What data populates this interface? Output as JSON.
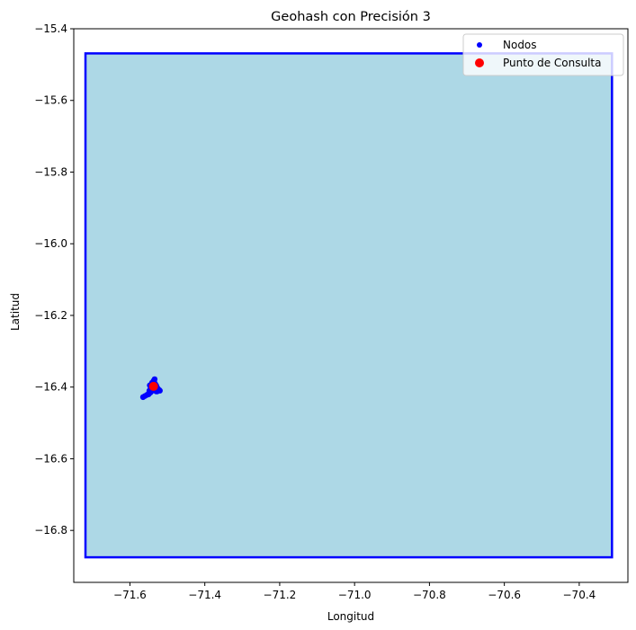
{
  "chart_data": {
    "type": "scatter",
    "title": "Geohash con Precisión 3",
    "xlabel": "Longitud",
    "ylabel": "Latitud",
    "xlim": [
      -71.75,
      -70.27
    ],
    "ylim": [
      -16.945,
      -15.4
    ],
    "xticks": [
      {
        "value": -71.6,
        "label": "−71.6"
      },
      {
        "value": -71.4,
        "label": "−71.4"
      },
      {
        "value": -71.2,
        "label": "−71.2"
      },
      {
        "value": -71.0,
        "label": "−71.0"
      },
      {
        "value": -70.8,
        "label": "−70.8"
      },
      {
        "value": -70.6,
        "label": "−70.6"
      },
      {
        "value": -70.4,
        "label": "−70.4"
      }
    ],
    "yticks": [
      {
        "value": -15.4,
        "label": "−15.4"
      },
      {
        "value": -15.6,
        "label": "−15.6"
      },
      {
        "value": -15.8,
        "label": "−15.8"
      },
      {
        "value": -16.0,
        "label": "−16.0"
      },
      {
        "value": -16.2,
        "label": "−16.2"
      },
      {
        "value": -16.4,
        "label": "−16.4"
      },
      {
        "value": -16.6,
        "label": "−16.6"
      },
      {
        "value": -16.8,
        "label": "−16.8"
      }
    ],
    "geohash_cell": {
      "lon_min": -71.71875,
      "lon_max": -70.3125,
      "lat_min": -16.875,
      "lat_max": -15.46875,
      "fill": "#add8e6",
      "edge": "#0000ff"
    },
    "series": [
      {
        "name": "Nodos",
        "color": "#0000ff",
        "x": [
          -71.565,
          -71.56,
          -71.555,
          -71.55,
          -71.548,
          -71.545,
          -71.542,
          -71.54,
          -71.538,
          -71.536,
          -71.535,
          -71.533,
          -71.53,
          -71.528,
          -71.525,
          -71.522,
          -71.52,
          -71.545,
          -71.54,
          -71.535,
          -71.53,
          -71.55,
          -71.543,
          -71.538,
          -71.532,
          -71.527,
          -71.537,
          -71.534,
          -71.541,
          -71.547
        ],
        "y": [
          -16.428,
          -16.425,
          -16.422,
          -16.418,
          -16.41,
          -16.405,
          -16.4,
          -16.395,
          -16.39,
          -16.385,
          -16.38,
          -16.39,
          -16.395,
          -16.4,
          -16.405,
          -16.408,
          -16.41,
          -16.415,
          -16.41,
          -16.405,
          -16.412,
          -16.42,
          -16.398,
          -16.392,
          -16.402,
          -16.412,
          -16.383,
          -16.378,
          -16.388,
          -16.395
        ]
      },
      {
        "name": "Punto de Consulta",
        "color": "#ff0000",
        "x": [
          -71.537
        ],
        "y": [
          -16.398
        ]
      }
    ],
    "legend": {
      "position": "top-right"
    },
    "grid": false
  }
}
